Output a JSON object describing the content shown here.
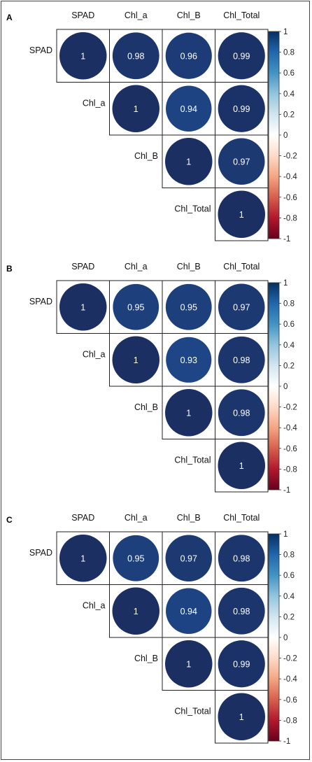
{
  "chart_data": [
    {
      "type": "heatmap",
      "panel_label": "A",
      "variables": [
        "SPAD",
        "Chl_a",
        "Chl_B",
        "Chl_Total"
      ],
      "matrix_upper": [
        [
          1,
          0.98,
          0.96,
          0.99
        ],
        [
          null,
          1,
          0.94,
          0.99
        ],
        [
          null,
          null,
          1,
          0.97
        ],
        [
          null,
          null,
          null,
          1
        ]
      ],
      "colorbar_ticks": [
        "1",
        "0.8",
        "0.6",
        "0.4",
        "0.2",
        "0",
        "-0.2",
        "-0.4",
        "-0.6",
        "-0.8",
        "-1"
      ],
      "colorbar_range": [
        -1,
        1
      ]
    },
    {
      "type": "heatmap",
      "panel_label": "B",
      "variables": [
        "SPAD",
        "Chl_a",
        "Chl_B",
        "Chl_Total"
      ],
      "matrix_upper": [
        [
          1,
          0.95,
          0.95,
          0.97
        ],
        [
          null,
          1,
          0.93,
          0.98
        ],
        [
          null,
          null,
          1,
          0.98
        ],
        [
          null,
          null,
          null,
          1
        ]
      ],
      "colorbar_ticks": [
        "1",
        "0.8",
        "0.6",
        "0.4",
        "0.2",
        "0",
        "-0.2",
        "-0.4",
        "-0.6",
        "-0.8",
        "-1"
      ],
      "colorbar_range": [
        -1,
        1
      ]
    },
    {
      "type": "heatmap",
      "panel_label": "C",
      "variables": [
        "SPAD",
        "Chl_a",
        "Chl_B",
        "Chl_Total"
      ],
      "matrix_upper": [
        [
          1,
          0.95,
          0.97,
          0.98
        ],
        [
          null,
          1,
          0.94,
          0.98
        ],
        [
          null,
          null,
          1,
          0.99
        ],
        [
          null,
          null,
          null,
          1
        ]
      ],
      "colorbar_ticks": [
        "1",
        "0.8",
        "0.6",
        "0.4",
        "0.2",
        "0",
        "-0.2",
        "-0.4",
        "-0.6",
        "-0.8",
        "-1"
      ],
      "colorbar_range": [
        -1,
        1
      ]
    }
  ],
  "colors": {
    "negative_end": "#67001F",
    "mid": "#FFFFFF",
    "positive_end": "#053061",
    "cell_text": "#FFFFFF"
  }
}
